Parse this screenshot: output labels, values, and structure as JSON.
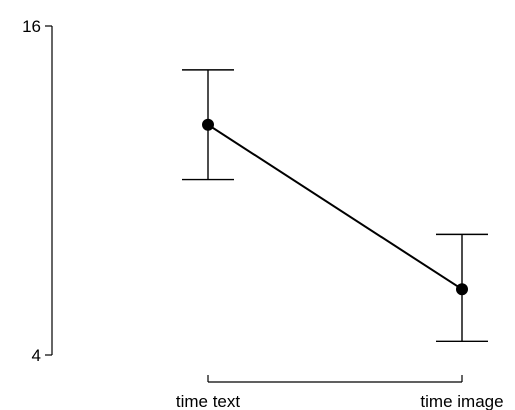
{
  "chart_data": {
    "type": "line",
    "categories": [
      "time text",
      "time image"
    ],
    "series": [
      {
        "values": [
          12.4,
          6.4
        ],
        "error_low": [
          10.4,
          4.5
        ],
        "error_high": [
          14.4,
          8.4
        ]
      }
    ],
    "yticks": [
      "16",
      "4"
    ],
    "ylim": [
      4,
      16
    ],
    "grid": false,
    "colors": {
      "line": "#000000",
      "point": "#000000",
      "errorbar": "#000000"
    }
  }
}
